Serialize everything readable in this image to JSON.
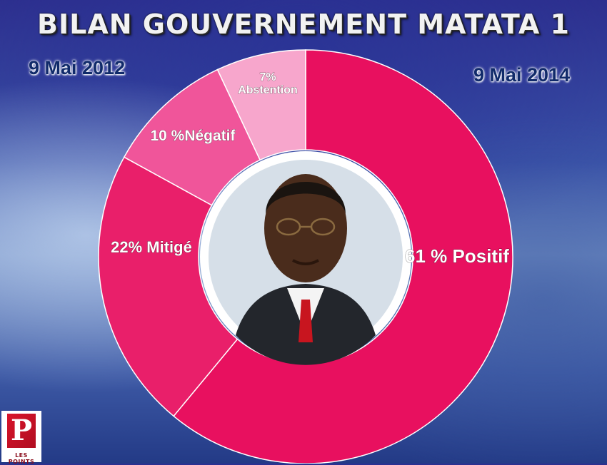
{
  "title": "BILAN GOUVERNEMENT MATATA 1",
  "date_start": "9 Mai 2012",
  "date_end": "9 Mai 2014",
  "logo_text": "LES POINTS",
  "logo_letter": "P",
  "chart_data": {
    "type": "pie",
    "variant": "donut",
    "title": "BILAN GOUVERNEMENT MATATA 1",
    "slices": [
      {
        "label": "61 % Positif",
        "value": 61,
        "color": "#e8105f"
      },
      {
        "label": "22% Mitigé",
        "value": 22,
        "color": "#e91f6a"
      },
      {
        "label": "10 %Négatif",
        "value": 10,
        "color": "#f0559a"
      },
      {
        "label": "7% Abstention",
        "value": 7,
        "color": "#f7a6cc"
      }
    ]
  }
}
